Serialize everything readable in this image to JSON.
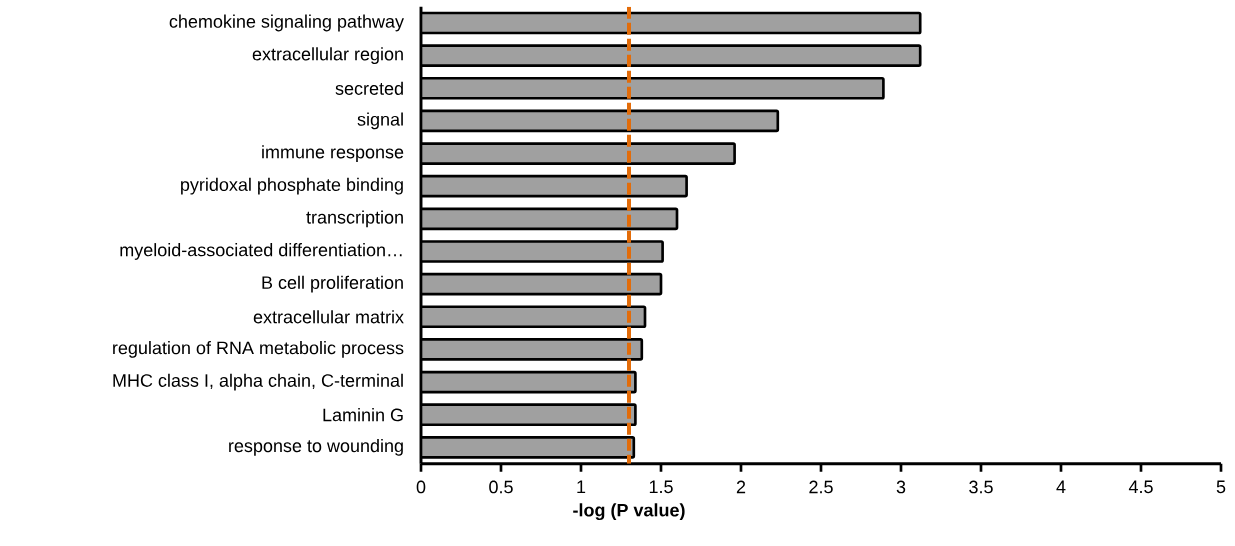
{
  "chart_data": {
    "type": "bar",
    "orientation": "horizontal",
    "xlabel": "**-log (P value)**",
    "categories": [
      "chemokine signaling pathway",
      "extracellular region",
      "secreted",
      "signal",
      "immune response",
      "pyridoxal phosphate binding",
      "transcription",
      "myeloid-associated differentiation…",
      "B cell proliferation",
      "extracellular matrix",
      "regulation of RNA metabolic process",
      "MHC class I, alpha chain, C-terminal",
      "Laminin G",
      "response to wounding"
    ],
    "values": [
      3.12,
      3.12,
      2.89,
      2.23,
      1.96,
      1.66,
      1.6,
      1.51,
      1.5,
      1.4,
      1.38,
      1.34,
      1.34,
      1.33
    ],
    "color": "#a0a0a0",
    "xlim": [
      0,
      5
    ],
    "xticks": [
      0,
      0.5,
      1,
      1.5,
      2,
      2.5,
      3,
      3.5,
      4,
      4.5,
      5
    ],
    "ref_lines": [
      {
        "axis": "x",
        "value": 1.3,
        "color": "#e36c09",
        "line_style": "dashed"
      }
    ],
    "grid": false
  }
}
